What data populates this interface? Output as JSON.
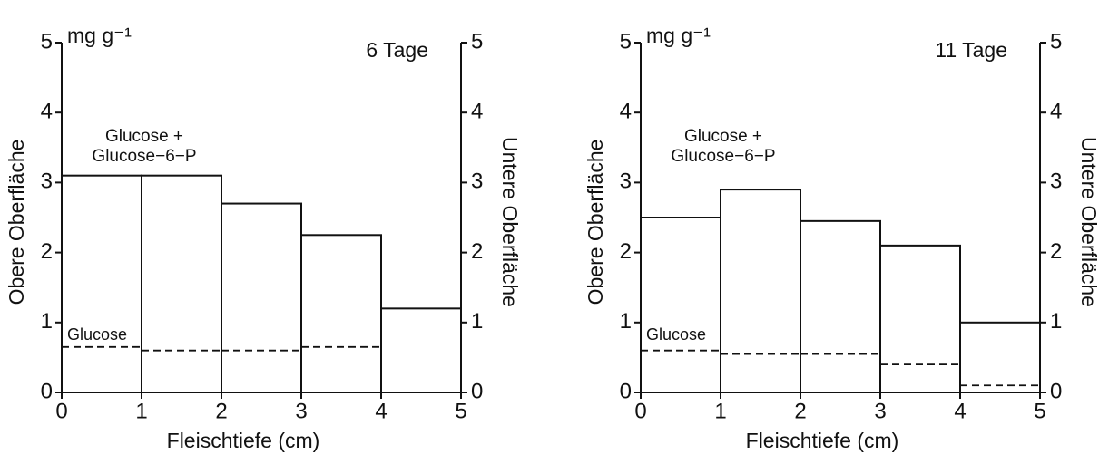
{
  "chart_data": [
    {
      "type": "histogram",
      "title": "6 Tage",
      "y_unit": "mg g⁻¹",
      "xlabel": "Fleischtiefe (cm)",
      "ylabel": "Obere Oberfläche",
      "y2label": "Untere Oberfläche",
      "bins": [
        0,
        1,
        2,
        3,
        4,
        5
      ],
      "series": [
        {
          "name": "Glucose + Glucose−6−P",
          "color": "#111111",
          "dashed": false,
          "values": [
            3.1,
            3.1,
            2.7,
            2.25,
            1.2
          ]
        },
        {
          "name": "Glucose",
          "color": "#111111",
          "dashed": true,
          "values": [
            0.65,
            0.6,
            0.6,
            0.65,
            null
          ]
        }
      ],
      "xlim": [
        0,
        5
      ],
      "xticks": [
        0,
        1,
        2,
        3,
        4,
        5
      ],
      "ylim": [
        0,
        5
      ],
      "yticks": [
        0,
        1,
        2,
        3,
        4,
        5
      ],
      "y2lim": [
        0,
        5
      ],
      "y2ticks": [
        0,
        1,
        2,
        3,
        4,
        5
      ]
    },
    {
      "type": "histogram",
      "title": "11 Tage",
      "y_unit": "mg g⁻¹",
      "xlabel": "Fleischtiefe (cm)",
      "ylabel": "Obere Oberfläche",
      "y2label": "Untere Oberfläche",
      "bins": [
        0,
        1,
        2,
        3,
        4,
        5
      ],
      "series": [
        {
          "name": "Glucose + Glucose−6−P",
          "color": "#111111",
          "dashed": false,
          "values": [
            2.5,
            2.9,
            2.45,
            2.1,
            1.0
          ]
        },
        {
          "name": "Glucose",
          "color": "#111111",
          "dashed": true,
          "values": [
            0.6,
            0.55,
            0.55,
            0.4,
            0.1
          ]
        }
      ],
      "xlim": [
        0,
        5
      ],
      "xticks": [
        0,
        1,
        2,
        3,
        4,
        5
      ],
      "ylim": [
        0,
        5
      ],
      "yticks": [
        0,
        1,
        2,
        3,
        4,
        5
      ],
      "y2lim": [
        0,
        5
      ],
      "y2ticks": [
        0,
        1,
        2,
        3,
        4,
        5
      ]
    }
  ]
}
